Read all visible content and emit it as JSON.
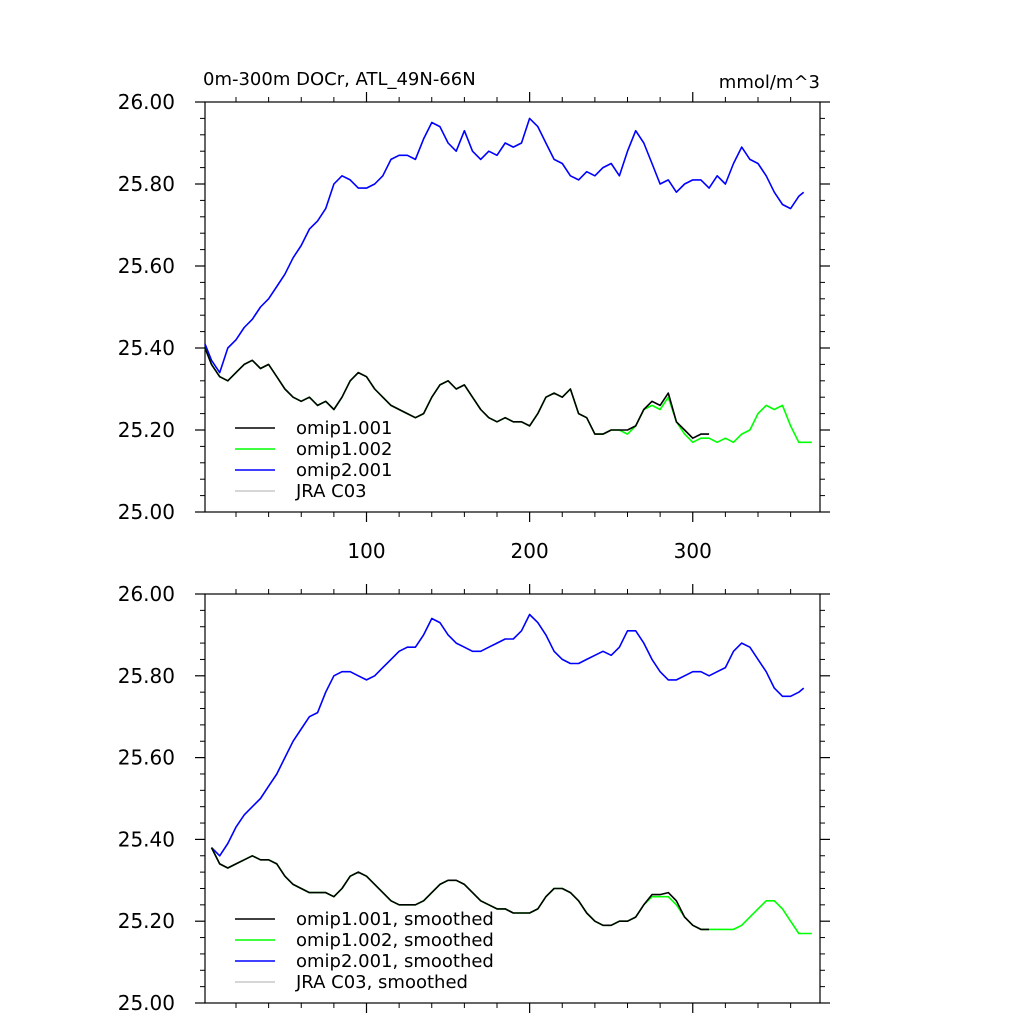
{
  "chart_data": [
    {
      "type": "line",
      "title": "0m-300m DOCr, ATL_49N-66N",
      "units": "mmol/m^3",
      "ylim": [
        25.0,
        26.0
      ],
      "yticks": [
        "25.00",
        "25.20",
        "25.40",
        "25.60",
        "25.80",
        "26.00"
      ],
      "xlim": [
        1,
        378
      ],
      "xticks": [
        "100",
        "200",
        "300"
      ],
      "grid": false,
      "legend_position": "bottom-left",
      "legend": [
        "omip1.001",
        "omip1.002",
        "omip2.001",
        "JRA C03"
      ],
      "series": [
        {
          "name": "omip2.001",
          "color": "#0000ff",
          "x": [
            1,
            5,
            10,
            15,
            20,
            25,
            30,
            35,
            40,
            45,
            50,
            55,
            60,
            65,
            70,
            75,
            80,
            85,
            90,
            95,
            100,
            105,
            110,
            115,
            120,
            125,
            130,
            135,
            140,
            145,
            150,
            155,
            160,
            165,
            170,
            175,
            180,
            185,
            190,
            195,
            200,
            205,
            210,
            215,
            220,
            225,
            230,
            235,
            240,
            245,
            250,
            255,
            260,
            265,
            270,
            275,
            280,
            285,
            290,
            295,
            300,
            305,
            310,
            315,
            320,
            325,
            330,
            335,
            340,
            345,
            350,
            355,
            360,
            365,
            368
          ],
          "values": [
            25.41,
            25.37,
            25.34,
            25.4,
            25.42,
            25.45,
            25.47,
            25.5,
            25.52,
            25.55,
            25.58,
            25.62,
            25.65,
            25.69,
            25.71,
            25.74,
            25.8,
            25.82,
            25.81,
            25.79,
            25.79,
            25.8,
            25.82,
            25.86,
            25.87,
            25.87,
            25.86,
            25.91,
            25.95,
            25.94,
            25.9,
            25.88,
            25.93,
            25.88,
            25.86,
            25.88,
            25.87,
            25.9,
            25.89,
            25.9,
            25.96,
            25.94,
            25.9,
            25.86,
            25.85,
            25.82,
            25.81,
            25.83,
            25.82,
            25.84,
            25.85,
            25.82,
            25.88,
            25.93,
            25.9,
            25.85,
            25.8,
            25.81,
            25.78,
            25.8,
            25.81,
            25.81,
            25.79,
            25.82,
            25.8,
            25.85,
            25.89,
            25.86,
            25.85,
            25.82,
            25.78,
            25.75,
            25.74,
            25.77,
            25.78
          ]
        },
        {
          "name": "omip1.002",
          "color": "#00ff00",
          "x": [
            1,
            5,
            10,
            15,
            20,
            25,
            30,
            35,
            40,
            45,
            50,
            55,
            60,
            65,
            70,
            75,
            80,
            85,
            90,
            95,
            100,
            105,
            110,
            115,
            120,
            125,
            130,
            135,
            140,
            145,
            150,
            155,
            160,
            165,
            170,
            175,
            180,
            185,
            190,
            195,
            200,
            205,
            210,
            215,
            220,
            225,
            230,
            235,
            240,
            245,
            250,
            255,
            260,
            265,
            270,
            275,
            280,
            285,
            290,
            295,
            300,
            305,
            310,
            315,
            320,
            325,
            330,
            335,
            340,
            345,
            350,
            355,
            360,
            365,
            373
          ],
          "values": [
            25.4,
            25.36,
            25.33,
            25.32,
            25.34,
            25.36,
            25.37,
            25.35,
            25.36,
            25.33,
            25.3,
            25.28,
            25.27,
            25.28,
            25.26,
            25.27,
            25.25,
            25.28,
            25.32,
            25.34,
            25.33,
            25.3,
            25.28,
            25.26,
            25.25,
            25.24,
            25.23,
            25.24,
            25.28,
            25.31,
            25.32,
            25.3,
            25.31,
            25.28,
            25.25,
            25.23,
            25.22,
            25.23,
            25.22,
            25.22,
            25.21,
            25.24,
            25.28,
            25.29,
            25.28,
            25.3,
            25.24,
            25.23,
            25.19,
            25.19,
            25.2,
            25.2,
            25.19,
            25.21,
            25.25,
            25.26,
            25.25,
            25.28,
            25.22,
            25.19,
            25.17,
            25.18,
            25.18,
            25.17,
            25.18,
            25.17,
            25.19,
            25.2,
            25.24,
            25.26,
            25.25,
            25.26,
            25.21,
            25.17,
            25.17
          ]
        },
        {
          "name": "omip1.001",
          "color": "#000000",
          "x": [
            1,
            5,
            10,
            15,
            20,
            25,
            30,
            35,
            40,
            45,
            50,
            55,
            60,
            65,
            70,
            75,
            80,
            85,
            90,
            95,
            100,
            105,
            110,
            115,
            120,
            125,
            130,
            135,
            140,
            145,
            150,
            155,
            160,
            165,
            170,
            175,
            180,
            185,
            190,
            195,
            200,
            205,
            210,
            215,
            220,
            225,
            230,
            235,
            240,
            245,
            250,
            255,
            260,
            265,
            270,
            275,
            280,
            285,
            290,
            295,
            300,
            305,
            310
          ],
          "values": [
            25.4,
            25.36,
            25.33,
            25.32,
            25.34,
            25.36,
            25.37,
            25.35,
            25.36,
            25.33,
            25.3,
            25.28,
            25.27,
            25.28,
            25.26,
            25.27,
            25.25,
            25.28,
            25.32,
            25.34,
            25.33,
            25.3,
            25.28,
            25.26,
            25.25,
            25.24,
            25.23,
            25.24,
            25.28,
            25.31,
            25.32,
            25.3,
            25.31,
            25.28,
            25.25,
            25.23,
            25.22,
            25.23,
            25.22,
            25.22,
            25.21,
            25.24,
            25.28,
            25.29,
            25.28,
            25.3,
            25.24,
            25.23,
            25.19,
            25.19,
            25.2,
            25.2,
            25.2,
            25.21,
            25.25,
            25.27,
            25.26,
            25.29,
            25.22,
            25.2,
            25.18,
            25.19,
            25.19
          ]
        },
        {
          "name": "JRA C03",
          "color": "#c8c8c8",
          "x": [],
          "values": []
        }
      ]
    },
    {
      "type": "line",
      "title": "",
      "ylim": [
        25.0,
        26.0
      ],
      "yticks": [
        "25.00",
        "25.20",
        "25.40",
        "25.60",
        "25.80",
        "26.00"
      ],
      "xlim": [
        1,
        378
      ],
      "xticks": [],
      "grid": false,
      "legend_position": "bottom-left",
      "legend": [
        "omip1.001, smoothed",
        "omip1.002, smoothed",
        "omip2.001, smoothed",
        "JRA C03, smoothed"
      ],
      "series": [
        {
          "name": "omip2.001, smoothed",
          "color": "#0000ff",
          "x": [
            5,
            10,
            15,
            20,
            25,
            30,
            35,
            40,
            45,
            50,
            55,
            60,
            65,
            70,
            75,
            80,
            85,
            90,
            95,
            100,
            105,
            110,
            115,
            120,
            125,
            130,
            135,
            140,
            145,
            150,
            155,
            160,
            165,
            170,
            175,
            180,
            185,
            190,
            195,
            200,
            205,
            210,
            215,
            220,
            225,
            230,
            235,
            240,
            245,
            250,
            255,
            260,
            265,
            270,
            275,
            280,
            285,
            290,
            295,
            300,
            305,
            310,
            315,
            320,
            325,
            330,
            335,
            340,
            345,
            350,
            355,
            360,
            365,
            368
          ],
          "values": [
            25.38,
            25.36,
            25.39,
            25.43,
            25.46,
            25.48,
            25.5,
            25.53,
            25.56,
            25.6,
            25.64,
            25.67,
            25.7,
            25.71,
            25.76,
            25.8,
            25.81,
            25.81,
            25.8,
            25.79,
            25.8,
            25.82,
            25.84,
            25.86,
            25.87,
            25.87,
            25.9,
            25.94,
            25.93,
            25.9,
            25.88,
            25.87,
            25.86,
            25.86,
            25.87,
            25.88,
            25.89,
            25.89,
            25.91,
            25.95,
            25.93,
            25.9,
            25.86,
            25.84,
            25.83,
            25.83,
            25.84,
            25.85,
            25.86,
            25.85,
            25.87,
            25.91,
            25.91,
            25.88,
            25.84,
            25.81,
            25.79,
            25.79,
            25.8,
            25.81,
            25.81,
            25.8,
            25.81,
            25.82,
            25.86,
            25.88,
            25.87,
            25.84,
            25.81,
            25.77,
            25.75,
            25.75,
            25.76,
            25.77
          ]
        },
        {
          "name": "omip1.002, smoothed",
          "color": "#00ff00",
          "x": [
            5,
            10,
            15,
            20,
            25,
            30,
            35,
            40,
            45,
            50,
            55,
            60,
            65,
            70,
            75,
            80,
            85,
            90,
            95,
            100,
            105,
            110,
            115,
            120,
            125,
            130,
            135,
            140,
            145,
            150,
            155,
            160,
            165,
            170,
            175,
            180,
            185,
            190,
            195,
            200,
            205,
            210,
            215,
            220,
            225,
            230,
            235,
            240,
            245,
            250,
            255,
            260,
            265,
            270,
            275,
            280,
            285,
            290,
            295,
            300,
            305,
            310,
            315,
            320,
            325,
            330,
            335,
            340,
            345,
            350,
            355,
            360,
            365,
            373
          ],
          "values": [
            25.38,
            25.34,
            25.33,
            25.34,
            25.35,
            25.36,
            25.35,
            25.35,
            25.34,
            25.31,
            25.29,
            25.28,
            25.27,
            25.27,
            25.27,
            25.26,
            25.28,
            25.31,
            25.32,
            25.31,
            25.29,
            25.27,
            25.25,
            25.24,
            25.24,
            25.24,
            25.25,
            25.27,
            25.29,
            25.3,
            25.3,
            25.29,
            25.27,
            25.25,
            25.24,
            25.23,
            25.23,
            25.22,
            25.22,
            25.22,
            25.23,
            25.26,
            25.28,
            25.28,
            25.27,
            25.25,
            25.22,
            25.2,
            25.19,
            25.19,
            25.2,
            25.2,
            25.21,
            25.24,
            25.26,
            25.26,
            25.26,
            25.24,
            25.21,
            25.19,
            25.18,
            25.18,
            25.18,
            25.18,
            25.18,
            25.19,
            25.21,
            25.23,
            25.25,
            25.25,
            25.23,
            25.2,
            25.17,
            25.17
          ]
        },
        {
          "name": "omip1.001, smoothed",
          "color": "#000000",
          "x": [
            5,
            10,
            15,
            20,
            25,
            30,
            35,
            40,
            45,
            50,
            55,
            60,
            65,
            70,
            75,
            80,
            85,
            90,
            95,
            100,
            105,
            110,
            115,
            120,
            125,
            130,
            135,
            140,
            145,
            150,
            155,
            160,
            165,
            170,
            175,
            180,
            185,
            190,
            195,
            200,
            205,
            210,
            215,
            220,
            225,
            230,
            235,
            240,
            245,
            250,
            255,
            260,
            265,
            270,
            275,
            280,
            285,
            290,
            295,
            300,
            305,
            310
          ],
          "values": [
            25.38,
            25.34,
            25.33,
            25.34,
            25.35,
            25.36,
            25.35,
            25.35,
            25.34,
            25.31,
            25.29,
            25.28,
            25.27,
            25.27,
            25.27,
            25.26,
            25.28,
            25.31,
            25.32,
            25.31,
            25.29,
            25.27,
            25.25,
            25.24,
            25.24,
            25.24,
            25.25,
            25.27,
            25.29,
            25.3,
            25.3,
            25.29,
            25.27,
            25.25,
            25.24,
            25.23,
            25.23,
            25.22,
            25.22,
            25.22,
            25.23,
            25.26,
            25.28,
            25.28,
            25.27,
            25.25,
            25.22,
            25.2,
            25.19,
            25.19,
            25.2,
            25.2,
            25.21,
            25.24,
            25.265,
            25.265,
            25.27,
            25.25,
            25.21,
            25.19,
            25.18,
            25.18
          ]
        },
        {
          "name": "JRA C03, smoothed",
          "color": "#c8c8c8",
          "x": [],
          "values": []
        }
      ]
    }
  ]
}
